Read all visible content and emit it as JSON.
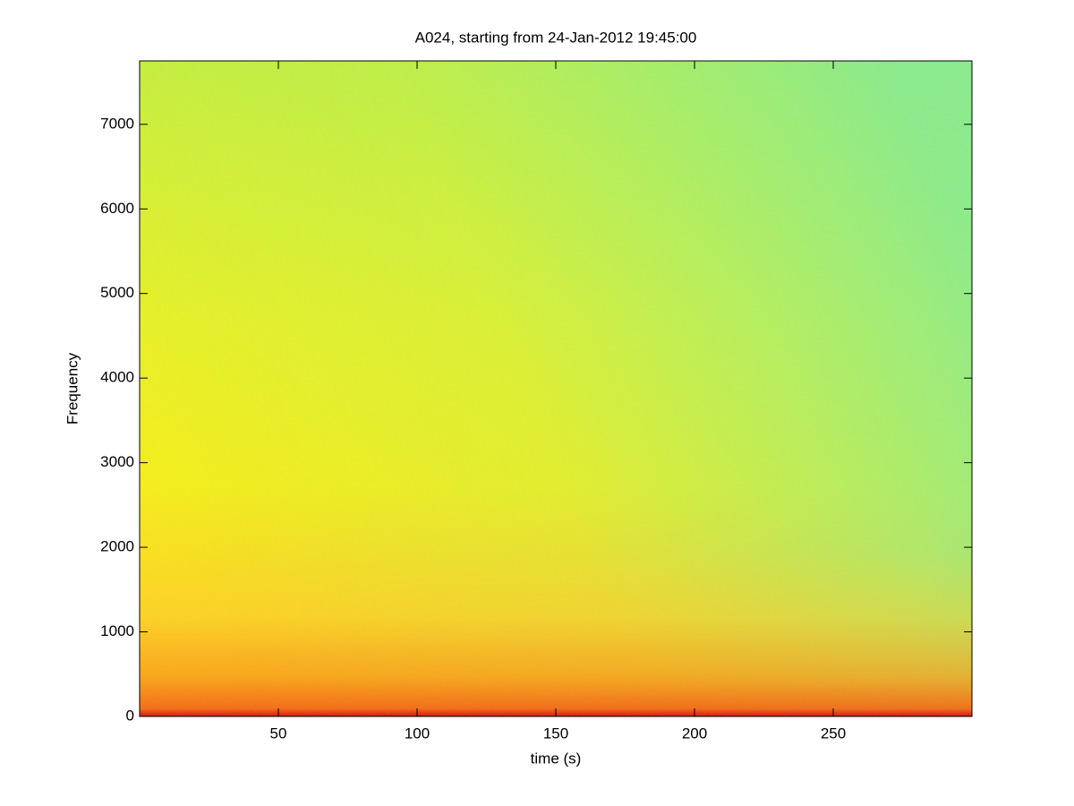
{
  "chart_data": {
    "type": "spectrogram",
    "title": "A024, starting from 24-Jan-2012 19:45:00",
    "x_label": "time (s)",
    "y_label": "Frequency",
    "xlim": [
      0,
      300
    ],
    "xticks": [
      50,
      100,
      150,
      200,
      250
    ],
    "ylim": [
      0,
      7750
    ],
    "yticks": [
      0,
      1000,
      2000,
      3000,
      4000,
      5000,
      6000,
      7000
    ],
    "grid": false
  }
}
